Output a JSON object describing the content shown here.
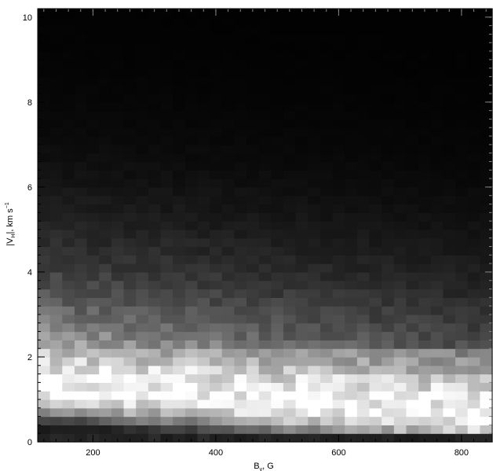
{
  "chart_data": {
    "type": "heatmap",
    "colormap": "grayscale",
    "xlabel": {
      "main": "B",
      "sub": "v",
      "rest": ", G"
    },
    "ylabel": {
      "pre": "|V",
      "sub": "H",
      "mid": "|, km s",
      "sup": "−1"
    },
    "xlim": [
      110,
      850
    ],
    "ylim": [
      0,
      10.2
    ],
    "xticks": [
      200,
      400,
      600,
      800
    ],
    "yticks": [
      0,
      2,
      4,
      6,
      8,
      10
    ],
    "x_minor_step": 20,
    "y_minor_step": 0.2,
    "bins": {
      "nx": 37,
      "ny": 51
    },
    "row_brightness_profile": [
      {
        "y": 0.1,
        "level": 0.12
      },
      {
        "y": 0.3,
        "level": 0.35
      },
      {
        "y": 0.5,
        "level": 0.62
      },
      {
        "y": 0.7,
        "level": 0.85
      },
      {
        "y": 0.9,
        "level": 0.95
      },
      {
        "y": 1.1,
        "level": 0.97
      },
      {
        "y": 1.3,
        "level": 0.95
      },
      {
        "y": 1.5,
        "level": 0.88
      },
      {
        "y": 1.7,
        "level": 0.8
      },
      {
        "y": 1.9,
        "level": 0.72
      },
      {
        "y": 2.1,
        "level": 0.63
      },
      {
        "y": 2.3,
        "level": 0.56
      },
      {
        "y": 2.5,
        "level": 0.49
      },
      {
        "y": 2.7,
        "level": 0.43
      },
      {
        "y": 3.0,
        "level": 0.37
      },
      {
        "y": 3.5,
        "level": 0.29
      },
      {
        "y": 4.0,
        "level": 0.22
      },
      {
        "y": 4.5,
        "level": 0.17
      },
      {
        "y": 5.0,
        "level": 0.13
      },
      {
        "y": 5.5,
        "level": 0.1
      },
      {
        "y": 6.0,
        "level": 0.075
      },
      {
        "y": 6.5,
        "level": 0.055
      },
      {
        "y": 7.0,
        "level": 0.04
      },
      {
        "y": 8.0,
        "level": 0.025
      },
      {
        "y": 9.0,
        "level": 0.015
      },
      {
        "y": 10.2,
        "level": 0.01
      }
    ],
    "ridge": {
      "y_at_xmin": 1.45,
      "y_at_xmax": 0.75
    }
  }
}
